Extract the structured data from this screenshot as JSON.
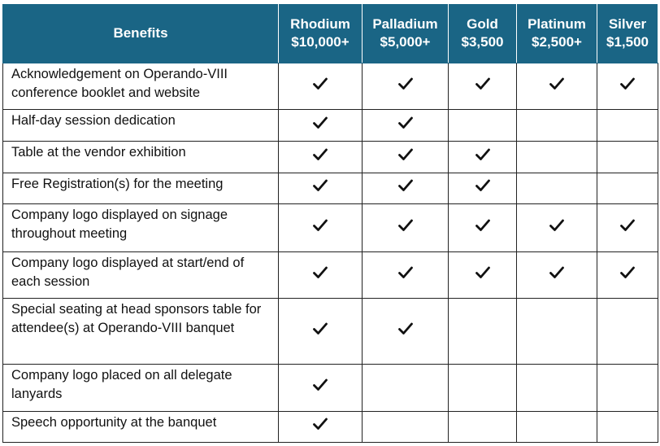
{
  "header": {
    "benefits": "Benefits",
    "tiers": [
      {
        "name": "Rhodium",
        "price": "$10,000+"
      },
      {
        "name": "Palladium",
        "price": "$5,000+"
      },
      {
        "name": "Gold",
        "price": "$3,500"
      },
      {
        "name": "Platinum",
        "price": "$2,500+"
      },
      {
        "name": "Silver",
        "price": "$1,500"
      }
    ]
  },
  "rows": [
    {
      "benefit": "Acknowledgement on Operando-VIII conference booklet and website",
      "checks": [
        true,
        true,
        true,
        true,
        true
      ]
    },
    {
      "benefit": "Half-day session dedication",
      "checks": [
        true,
        true,
        false,
        false,
        false
      ]
    },
    {
      "benefit": "Table at the vendor exhibition",
      "checks": [
        true,
        true,
        true,
        false,
        false
      ]
    },
    {
      "benefit": "Free Registration(s) for the meeting",
      "checks": [
        true,
        true,
        true,
        false,
        false
      ]
    },
    {
      "benefit": "Company logo displayed on signage throughout meeting",
      "checks": [
        true,
        true,
        true,
        true,
        true
      ]
    },
    {
      "benefit": "Company logo displayed at start/end of each session",
      "checks": [
        true,
        true,
        true,
        true,
        true
      ]
    },
    {
      "benefit": "Special seating at head sponsors table for attendee(s) at Operando-VIII banquet",
      "checks": [
        true,
        true,
        false,
        false,
        false
      ]
    },
    {
      "benefit": "Company logo placed on all delegate lanyards",
      "checks": [
        true,
        false,
        false,
        false,
        false
      ]
    },
    {
      "benefit": "Speech opportunity at the banquet",
      "checks": [
        true,
        false,
        false,
        false,
        false
      ]
    }
  ],
  "colors": {
    "header_bg": "#1a6585",
    "header_text": "#ffffff"
  },
  "icons": {
    "check": "check-icon"
  }
}
